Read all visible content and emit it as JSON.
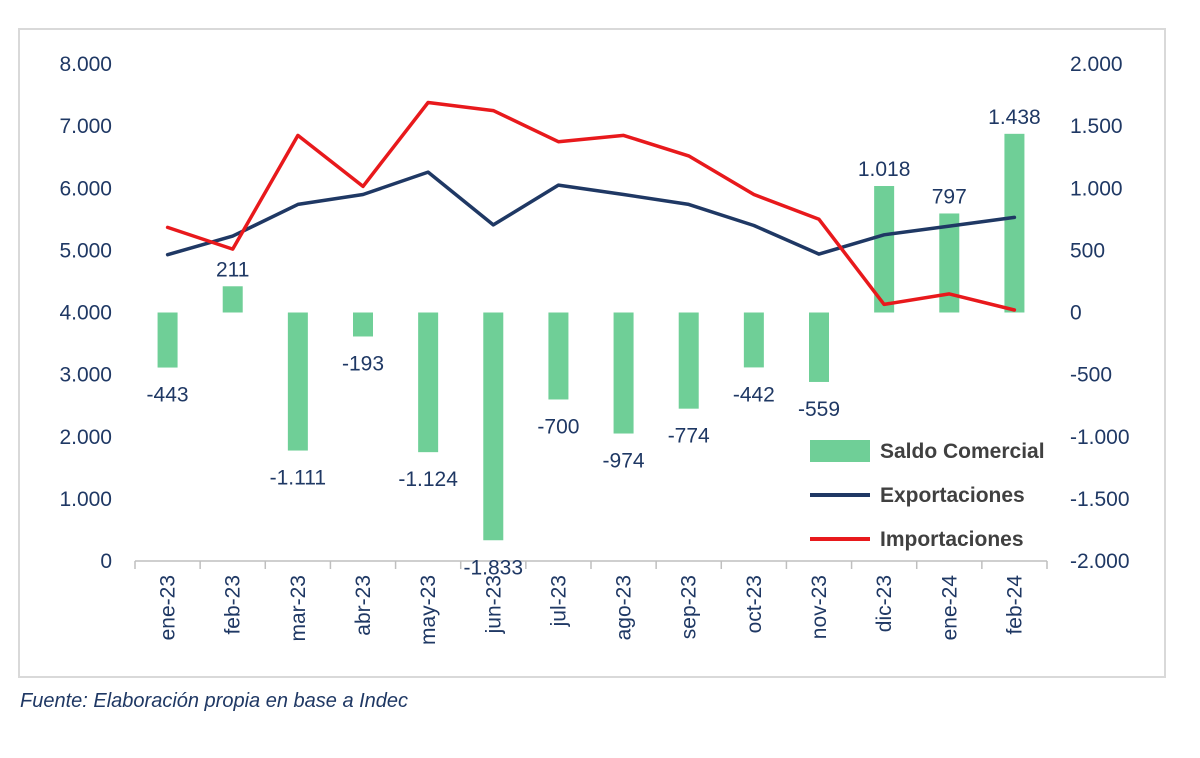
{
  "chart_data": {
    "type": "bar",
    "categories": [
      "ene-23",
      "feb-23",
      "mar-23",
      "abr-23",
      "may-23",
      "jun-23",
      "jul-23",
      "ago-23",
      "sep-23",
      "oct-23",
      "nov-23",
      "dic-23",
      "ene-24",
      "feb-24"
    ],
    "series": [
      {
        "name": "Saldo Comercial",
        "type": "bar",
        "axis": "right",
        "color": "#6fcf97",
        "values": [
          -443,
          211,
          -1111,
          -193,
          -1124,
          -1833,
          -700,
          -974,
          -774,
          -442,
          -559,
          1018,
          797,
          1438
        ],
        "labels": [
          "-443",
          "211",
          "-1.111",
          "-193",
          "-1.124",
          "-1.833",
          "-700",
          "-974",
          "-774",
          "-442",
          "-559",
          "1.018",
          "797",
          "1.438"
        ]
      },
      {
        "name": "Exportaciones",
        "type": "line",
        "axis": "left",
        "color": "#1f3864",
        "values": [
          4930,
          5230,
          5740,
          5900,
          6260,
          5410,
          6050,
          5900,
          5740,
          5400,
          4940,
          5250,
          5390,
          5530
        ]
      },
      {
        "name": "Importaciones",
        "type": "line",
        "axis": "left",
        "color": "#e8191c",
        "values": [
          5370,
          5020,
          6850,
          6030,
          7380,
          7250,
          6750,
          6850,
          6520,
          5900,
          5500,
          4130,
          4300,
          4040
        ]
      }
    ],
    "y_left": {
      "min": 0,
      "max": 8000,
      "ticks": [
        "0",
        "1.000",
        "2.000",
        "3.000",
        "4.000",
        "5.000",
        "6.000",
        "7.000",
        "8.000"
      ]
    },
    "y_right": {
      "min": -2000,
      "max": 2000,
      "ticks": [
        "-2.000",
        "-1.500",
        "-1.000",
        "-500",
        "0",
        "500",
        "1.000",
        "1.500",
        "2.000"
      ]
    },
    "legend_position": "bottom-right",
    "grid": false
  },
  "source": "Fuente: Elaboración propia en base a Indec"
}
